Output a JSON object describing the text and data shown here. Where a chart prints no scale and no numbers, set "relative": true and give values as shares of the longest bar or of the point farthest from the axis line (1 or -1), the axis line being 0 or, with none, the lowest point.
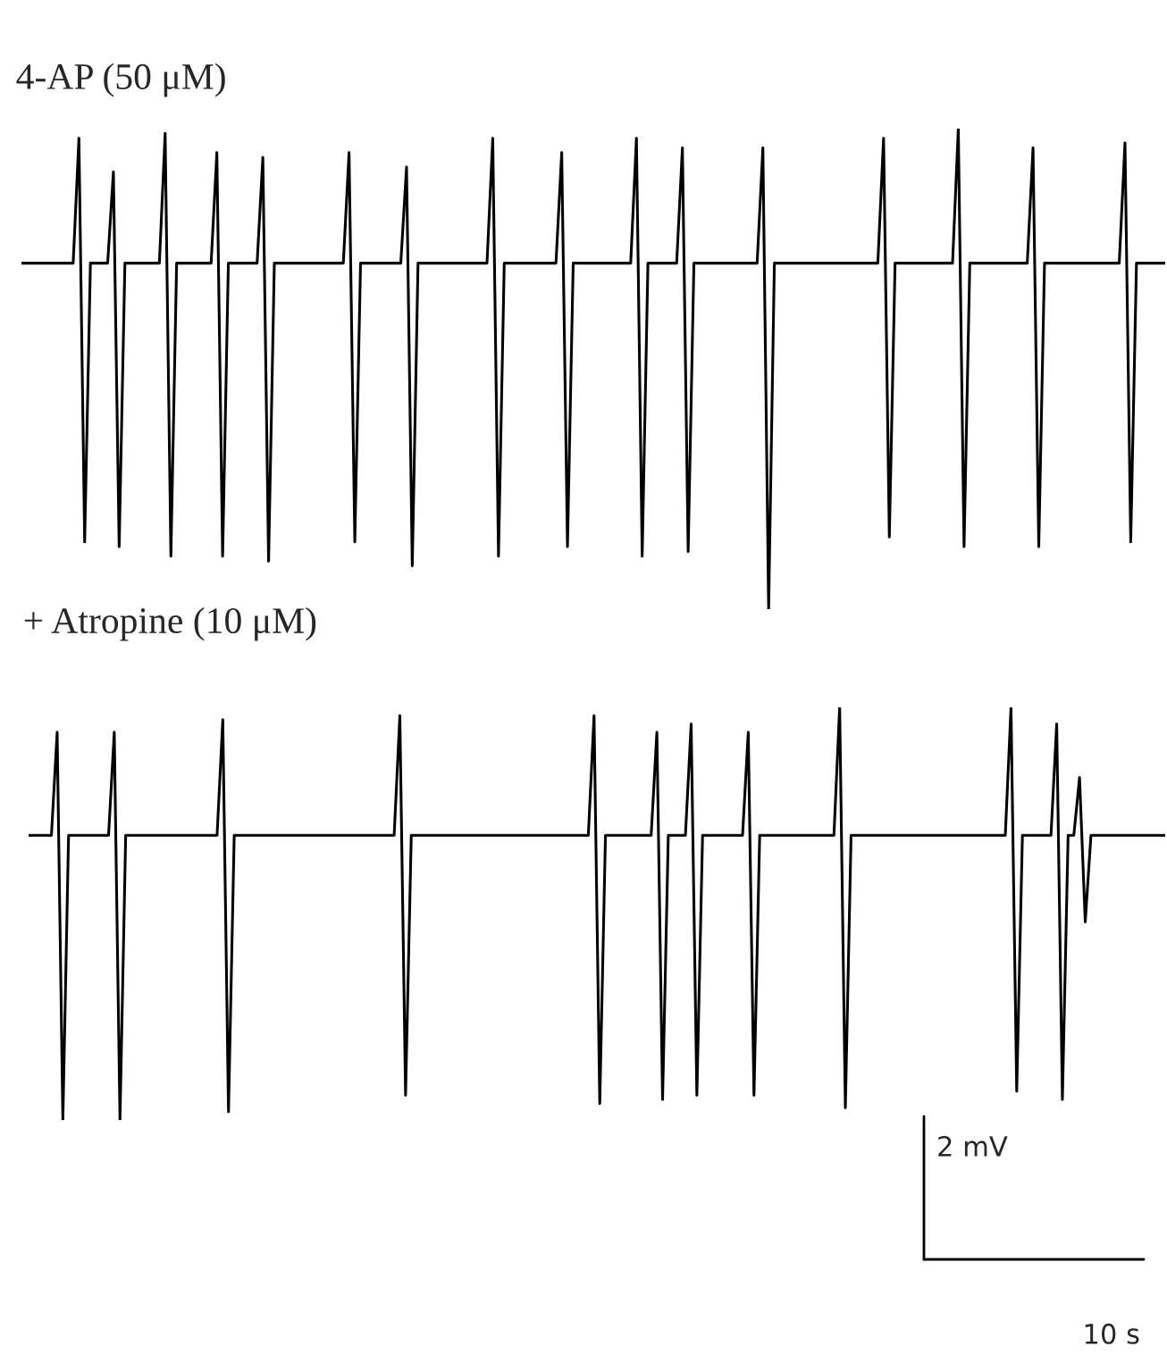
{
  "chart_data": [
    {
      "type": "line",
      "title": "4-AP (50 μM)",
      "relative": true,
      "categories": [
        null,
        null,
        null,
        null,
        null,
        null,
        null,
        null,
        null,
        null,
        null,
        null,
        null,
        null,
        null,
        null,
        null,
        null,
        null,
        null,
        null,
        null,
        null,
        null,
        null,
        null,
        null,
        null,
        null,
        null,
        null,
        null,
        null,
        null,
        null,
        null,
        null,
        null,
        null,
        null,
        null,
        null,
        null,
        null,
        null,
        null,
        null,
        null,
        null,
        null,
        null,
        null,
        null,
        null,
        null,
        null,
        null,
        null,
        null,
        null,
        null,
        null,
        null,
        null,
        null,
        null,
        null,
        null,
        null,
        null,
        null,
        null,
        null,
        null,
        null,
        null,
        null,
        null,
        null,
        null,
        null,
        null,
        null,
        null,
        null,
        null,
        null,
        null,
        null,
        null,
        null,
        null,
        null,
        null,
        null,
        null,
        null,
        null,
        null,
        null,
        null,
        null,
        null,
        null,
        null,
        null,
        null,
        null,
        null,
        null,
        null,
        null,
        null,
        null,
        null,
        null,
        null,
        null,
        null,
        null,
        null,
        null,
        null,
        null,
        null,
        null,
        null,
        null,
        null,
        null,
        null,
        null,
        null,
        null,
        null,
        null,
        null,
        null,
        null,
        null,
        null,
        null,
        null,
        null,
        null,
        null,
        null,
        null,
        null,
        null,
        null,
        null,
        null,
        null,
        null,
        null,
        null,
        null,
        null,
        null,
        null,
        null,
        null,
        null,
        null,
        null,
        null,
        null,
        null,
        null,
        null,
        null,
        null,
        null,
        null,
        null,
        null,
        null,
        null,
        null,
        null,
        null,
        null,
        null,
        null,
        null,
        null,
        null,
        null,
        null,
        null,
        null,
        null,
        null,
        null,
        null,
        null,
        null,
        null,
        null
      ],
      "series": [
        {
          "color": "#000000",
          "values": [
            0.72,
            0.72,
            0.72,
            0.72,
            0.72,
            0.72,
            0.72,
            0.72,
            0.72,
            0.72,
            0.98,
            0.14,
            0.72,
            0.72,
            0.72,
            0.72,
            0.91,
            0.13,
            0.72,
            0.72,
            0.72,
            0.72,
            0.72,
            0.72,
            0.72,
            0.99,
            0.11,
            0.72,
            0.72,
            0.72,
            0.72,
            0.72,
            0.72,
            0.72,
            0.95,
            0.11,
            0.72,
            0.72,
            0.72,
            0.72,
            0.72,
            0.72,
            0.94,
            0.1,
            0.72,
            0.72,
            0.72,
            0.72,
            0.72,
            0.72,
            0.72,
            0.72,
            0.72,
            0.72,
            0.72,
            0.72,
            0.72,
            0.95,
            0.14,
            0.72,
            0.72,
            0.72,
            0.72,
            0.72,
            0.72,
            0.72,
            0.72,
            0.92,
            0.09,
            0.72,
            0.72,
            0.72,
            0.72,
            0.72,
            0.72,
            0.72,
            0.72,
            0.72,
            0.72,
            0.72,
            0.72,
            0.72,
            0.98,
            0.11,
            0.72,
            0.72,
            0.72,
            0.72,
            0.72,
            0.72,
            0.72,
            0.72,
            0.72,
            0.72,
            0.95,
            0.13,
            0.72,
            0.72,
            0.72,
            0.72,
            0.72,
            0.72,
            0.72,
            0.72,
            0.72,
            0.72,
            0.72,
            0.98,
            0.11,
            0.72,
            0.72,
            0.72,
            0.72,
            0.72,
            0.72,
            0.96,
            0.12,
            0.72,
            0.72,
            0.72,
            0.72,
            0.72,
            0.72,
            0.72,
            0.72,
            0.72,
            0.72,
            0.72,
            0.72,
            0.96,
            0,
            0.72,
            0.72,
            0.72,
            0.72,
            0.72,
            0.72,
            0.72,
            0.72,
            0.72,
            0.72,
            0.72,
            0.72,
            0.72,
            0.72,
            0.72,
            0.72,
            0.72,
            0.72,
            0.72,
            0.98,
            0.15,
            0.72,
            0.72,
            0.72,
            0.72,
            0.72,
            0.72,
            0.72,
            0.72,
            0.72,
            0.72,
            0.72,
            1,
            0.13,
            0.72,
            0.72,
            0.72,
            0.72,
            0.72,
            0.72,
            0.72,
            0.72,
            0.72,
            0.72,
            0.72,
            0.96,
            0.13,
            0.72,
            0.72,
            0.72,
            0.72,
            0.72,
            0.72,
            0.72,
            0.72,
            0.72,
            0.72,
            0.72,
            0.72,
            0.72,
            0.72,
            0.97,
            0.14,
            0.72,
            0.72,
            0.72,
            0.72,
            0.72,
            0.72
          ]
        }
      ]
    },
    {
      "type": "line",
      "title": "+ Atropine (10 μM)",
      "relative": true,
      "annotations": [
        "2 mV",
        "10 s"
      ],
      "categories": [
        null,
        null,
        null,
        null,
        null,
        null,
        null,
        null,
        null,
        null,
        null,
        null,
        null,
        null,
        null,
        null,
        null,
        null,
        null,
        null,
        null,
        null,
        null,
        null,
        null,
        null,
        null,
        null,
        null,
        null,
        null,
        null,
        null,
        null,
        null,
        null,
        null,
        null,
        null,
        null,
        null,
        null,
        null,
        null,
        null,
        null,
        null,
        null,
        null,
        null,
        null,
        null,
        null,
        null,
        null,
        null,
        null,
        null,
        null,
        null,
        null,
        null,
        null,
        null,
        null,
        null,
        null,
        null,
        null,
        null,
        null,
        null,
        null,
        null,
        null,
        null,
        null,
        null,
        null,
        null,
        null,
        null,
        null,
        null,
        null,
        null,
        null,
        null,
        null,
        null,
        null,
        null,
        null,
        null,
        null,
        null,
        null,
        null,
        null,
        null,
        null,
        null,
        null,
        null,
        null,
        null,
        null,
        null,
        null,
        null,
        null,
        null,
        null,
        null,
        null,
        null,
        null,
        null,
        null,
        null,
        null,
        null,
        null,
        null,
        null,
        null,
        null,
        null,
        null,
        null,
        null,
        null,
        null,
        null,
        null,
        null,
        null,
        null,
        null,
        null,
        null,
        null,
        null,
        null,
        null,
        null,
        null,
        null,
        null,
        null,
        null,
        null,
        null,
        null,
        null,
        null,
        null,
        null,
        null,
        null,
        null,
        null,
        null,
        null,
        null,
        null,
        null,
        null,
        null,
        null,
        null,
        null,
        null,
        null,
        null,
        null,
        null,
        null,
        null,
        null,
        null,
        null,
        null,
        null,
        null,
        null,
        null,
        null,
        null,
        null,
        null,
        null,
        null,
        null,
        null,
        null,
        null,
        null,
        null,
        null
      ],
      "series": [
        {
          "color": "#000000",
          "values": [
            0.69,
            0.69,
            0.69,
            0.69,
            0.69,
            0.94,
            0,
            0.69,
            0.69,
            0.69,
            0.69,
            0.69,
            0.69,
            0.69,
            0.69,
            0.94,
            0,
            0.69,
            0.69,
            0.69,
            0.69,
            0.69,
            0.69,
            0.69,
            0.69,
            0.69,
            0.69,
            0.69,
            0.69,
            0.69,
            0.69,
            0.69,
            0.69,
            0.69,
            0.97,
            0.02,
            0.69,
            0.69,
            0.69,
            0.69,
            0.69,
            0.69,
            0.69,
            0.69,
            0.69,
            0.69,
            0.69,
            0.69,
            0.69,
            0.69,
            0.69,
            0.69,
            0.69,
            0.69,
            0.69,
            0.69,
            0.69,
            0.69,
            0.69,
            0.69,
            0.69,
            0.69,
            0.69,
            0.69,
            0.69,
            0.98,
            0.06,
            0.69,
            0.69,
            0.69,
            0.69,
            0.69,
            0.69,
            0.69,
            0.69,
            0.69,
            0.69,
            0.69,
            0.69,
            0.69,
            0.69,
            0.69,
            0.69,
            0.69,
            0.69,
            0.69,
            0.69,
            0.69,
            0.69,
            0.69,
            0.69,
            0.69,
            0.69,
            0.69,
            0.69,
            0.69,
            0.69,
            0.69,
            0.69,
            0.98,
            0.04,
            0.69,
            0.69,
            0.69,
            0.69,
            0.69,
            0.69,
            0.69,
            0.69,
            0.69,
            0.94,
            0.05,
            0.69,
            0.69,
            0.69,
            0.69,
            0.96,
            0.06,
            0.69,
            0.69,
            0.69,
            0.69,
            0.69,
            0.69,
            0.69,
            0.69,
            0.94,
            0.06,
            0.69,
            0.69,
            0.69,
            0.69,
            0.69,
            0.69,
            0.69,
            0.69,
            0.69,
            0.69,
            0.69,
            0.69,
            0.69,
            0.69,
            1,
            0.03,
            0.69,
            0.69,
            0.69,
            0.69,
            0.69,
            0.69,
            0.69,
            0.69,
            0.69,
            0.69,
            0.69,
            0.69,
            0.69,
            0.69,
            0.69,
            0.69,
            0.69,
            0.69,
            0.69,
            0.69,
            0.69,
            0.69,
            0.69,
            0.69,
            0.69,
            0.69,
            0.69,
            0.69,
            1,
            0.07,
            0.69,
            0.69,
            0.69,
            0.69,
            0.69,
            0.69,
            0.96,
            0.05,
            0.69,
            0.69,
            0.83,
            0.48,
            0.69,
            0.69,
            0.69,
            0.69,
            0.69,
            0.69,
            0.69,
            0.69,
            0.69,
            0.69,
            0.69,
            0.69,
            0.69,
            0.69
          ]
        }
      ]
    }
  ]
}
